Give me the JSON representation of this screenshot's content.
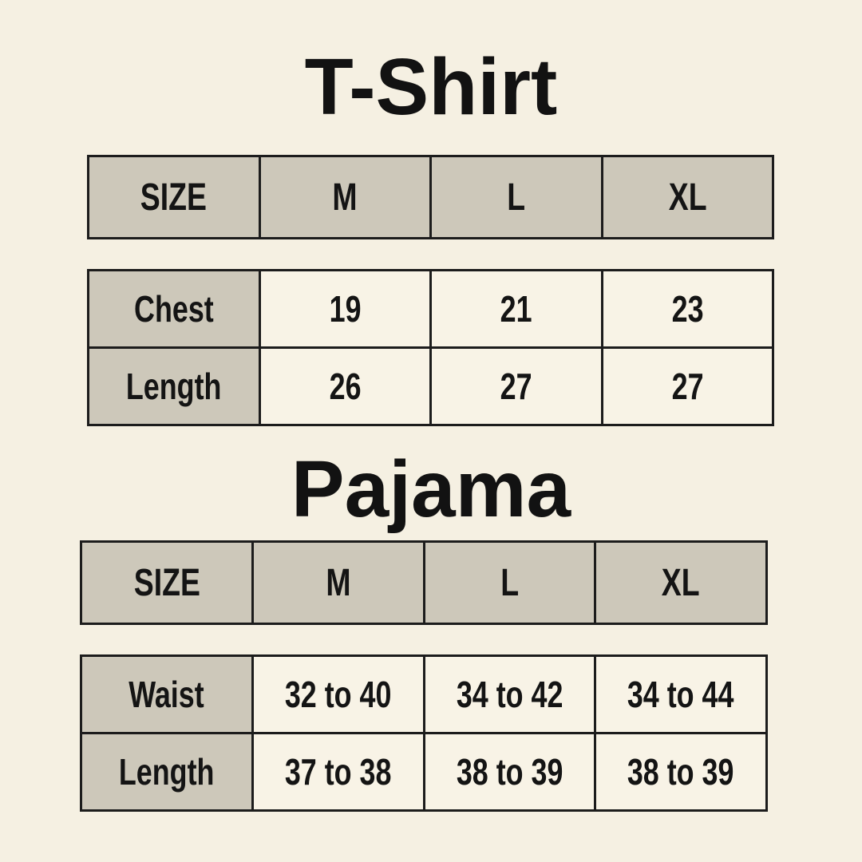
{
  "page": {
    "background_color": "#f5f0e2",
    "header_cell_color": "#cdc8ba",
    "value_cell_color": "#f8f3e6",
    "border_color": "#1c1c1c",
    "text_color": "#121212"
  },
  "chart_data": [
    {
      "type": "table",
      "title": "T-Shirt",
      "columns": [
        "SIZE",
        "M",
        "L",
        "XL"
      ],
      "rows": [
        [
          "Chest",
          "19",
          "21",
          "23"
        ],
        [
          "Length",
          "26",
          "27",
          "27"
        ]
      ]
    },
    {
      "type": "table",
      "title": "Pajama",
      "columns": [
        "SIZE",
        "M",
        "L",
        "XL"
      ],
      "rows": [
        [
          "Waist",
          "32 to 40",
          "34 to 42",
          "34 to 44"
        ],
        [
          "Length",
          "37 to 38",
          "38 to 39",
          "38 to 39"
        ]
      ]
    }
  ]
}
